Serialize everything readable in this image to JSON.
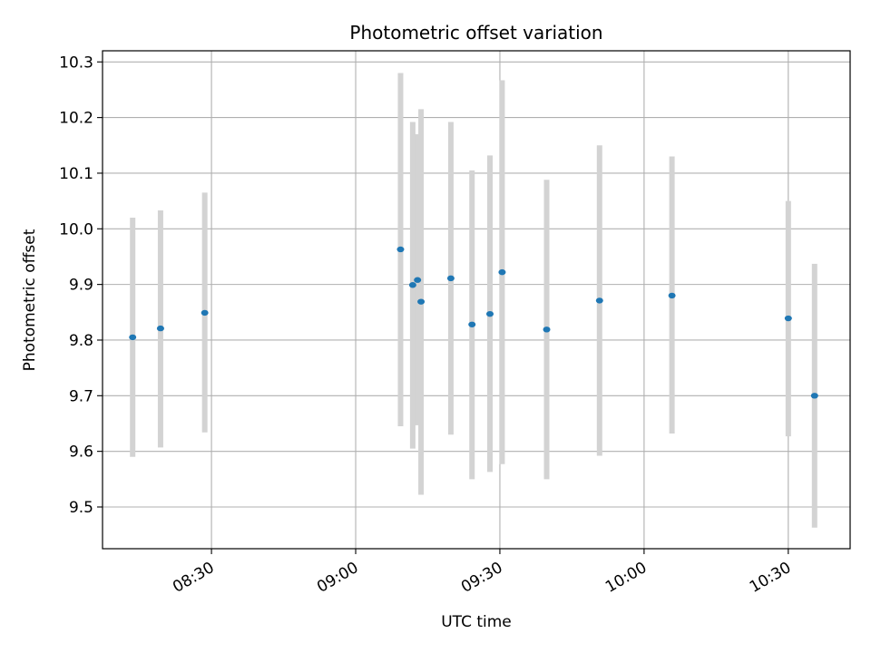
{
  "chart_data": {
    "type": "scatter",
    "title": "Photometric offset variation",
    "xlabel": "UTC time",
    "ylabel": "Photometric offset",
    "x_tick_labels": [
      "08:30",
      "09:00",
      "09:30",
      "10:00",
      "10:30"
    ],
    "y_tick_labels": [
      "9.5",
      "9.6",
      "9.7",
      "9.8",
      "9.9",
      "10.0",
      "10.1",
      "10.2",
      "10.3"
    ],
    "y_ticks": [
      9.5,
      9.6,
      9.7,
      9.8,
      9.9,
      10.0,
      10.1,
      10.2,
      10.3
    ],
    "x_ticks": [
      "08:30",
      "09:00",
      "09:30",
      "10:00",
      "10:30"
    ],
    "xlim": [
      "08:07:20",
      "10:42:52"
    ],
    "ylim": [
      9.425,
      10.32
    ],
    "grid": true,
    "colors": {
      "point": "#1f77b4",
      "errorbar": "#d3d3d3",
      "grid": "#b0b0b0"
    },
    "points": [
      {
        "x": "08:13:36",
        "y": 9.805,
        "ylow": 9.59,
        "yhigh": 10.02
      },
      {
        "x": "08:19:24",
        "y": 9.821,
        "ylow": 9.607,
        "yhigh": 10.033
      },
      {
        "x": "08:28:36",
        "y": 9.849,
        "ylow": 9.634,
        "yhigh": 10.065
      },
      {
        "x": "09:09:20",
        "y": 9.963,
        "ylow": 9.645,
        "yhigh": 10.28
      },
      {
        "x": "09:11:52",
        "y": 9.899,
        "ylow": 9.605,
        "yhigh": 10.192
      },
      {
        "x": "09:12:52",
        "y": 9.908,
        "ylow": 9.647,
        "yhigh": 10.17
      },
      {
        "x": "09:13:36",
        "y": 9.869,
        "ylow": 9.522,
        "yhigh": 10.215
      },
      {
        "x": "09:19:48",
        "y": 9.911,
        "ylow": 9.63,
        "yhigh": 10.192
      },
      {
        "x": "09:24:12",
        "y": 9.828,
        "ylow": 9.55,
        "yhigh": 10.105
      },
      {
        "x": "09:27:56",
        "y": 9.847,
        "ylow": 9.563,
        "yhigh": 10.132
      },
      {
        "x": "09:30:28",
        "y": 9.922,
        "ylow": 9.577,
        "yhigh": 10.267
      },
      {
        "x": "09:39:44",
        "y": 9.819,
        "ylow": 9.55,
        "yhigh": 10.088
      },
      {
        "x": "09:50:44",
        "y": 9.871,
        "ylow": 9.592,
        "yhigh": 10.15
      },
      {
        "x": "10:05:48",
        "y": 9.88,
        "ylow": 9.632,
        "yhigh": 10.13
      },
      {
        "x": "10:30:00",
        "y": 9.839,
        "ylow": 9.627,
        "yhigh": 10.05
      },
      {
        "x": "10:35:28",
        "y": 9.7,
        "ylow": 9.463,
        "yhigh": 9.937
      }
    ]
  }
}
